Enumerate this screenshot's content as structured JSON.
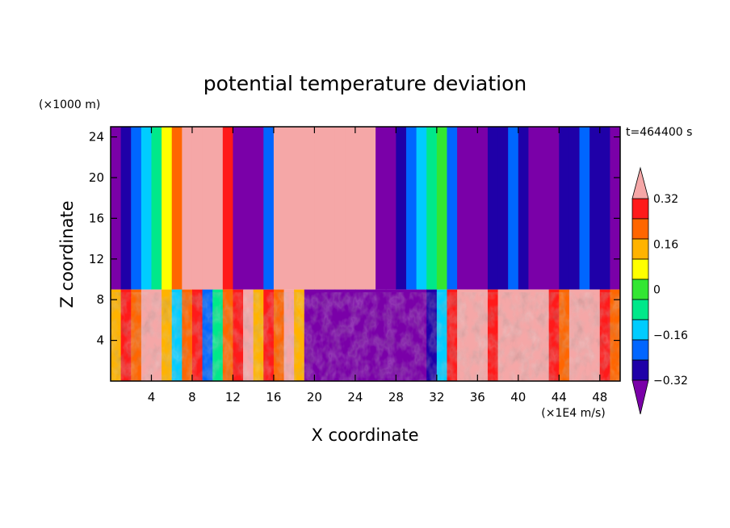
{
  "chart_data": {
    "type": "heatmap",
    "title": "potential temperature deviation",
    "xlabel": "X coordinate",
    "ylabel": "Z coordinate",
    "x_unit": "(×1E4 m/s)",
    "y_unit": "(×1000 m)",
    "time_label": "t=464400 s",
    "xlim": [
      0,
      50
    ],
    "ylim": [
      0,
      25
    ],
    "x_ticks": [
      4,
      8,
      12,
      16,
      20,
      24,
      28,
      32,
      36,
      40,
      44,
      48
    ],
    "y_ticks": [
      4,
      8,
      12,
      16,
      20,
      24
    ],
    "grid": false,
    "legend": "right",
    "colorbar": {
      "levels": [
        -0.4,
        -0.32,
        -0.24,
        -0.16,
        -0.08,
        0,
        0.08,
        0.16,
        0.24,
        0.32,
        0.4
      ],
      "tick_labels": [
        "0.32",
        "0.16",
        "0",
        "−0.16",
        "−0.32"
      ],
      "tick_values": [
        0.32,
        0.16,
        0,
        -0.16,
        -0.32
      ],
      "colors": [
        "#7a00a8",
        "#1f00a8",
        "#0066ff",
        "#00ccff",
        "#00e88a",
        "#33e633",
        "#ffff00",
        "#ffb300",
        "#ff6600",
        "#ff1a1a",
        "#f5a7a7"
      ]
    },
    "upper_layer": {
      "z_range": [
        9,
        25
      ],
      "values": [
        -0.45,
        -0.4,
        -0.32,
        -0.2,
        -0.1,
        0.05,
        0.2,
        0.45,
        0.45,
        0.45,
        0.45,
        0.3,
        -0.45,
        -0.45,
        -0.45,
        -0.3,
        0.45,
        0.45,
        0.45,
        0.45,
        0.45,
        0.45,
        0.45,
        0.45,
        0.45,
        0.45,
        -0.45,
        -0.45,
        -0.4,
        -0.3,
        -0.2,
        -0.1,
        -0.05,
        -0.3,
        -0.45,
        -0.45,
        -0.45,
        -0.4,
        -0.35,
        -0.3,
        -0.35,
        -0.45,
        -0.45,
        -0.45,
        -0.4,
        -0.35,
        -0.3,
        -0.35,
        -0.4,
        -0.45
      ]
    },
    "lower_layer": {
      "z_range": [
        0,
        9
      ],
      "values": [
        0.1,
        0.3,
        0.2,
        0.4,
        0.45,
        0.1,
        -0.2,
        0.2,
        0.3,
        -0.3,
        -0.1,
        0.2,
        0.3,
        0.45,
        0.1,
        0.3,
        0.2,
        0.45,
        0.1,
        -0.45,
        -0.45,
        -0.45,
        -0.45,
        -0.45,
        -0.45,
        -0.45,
        -0.45,
        -0.45,
        -0.45,
        -0.45,
        -0.45,
        -0.4,
        -0.2,
        0.3,
        0.45,
        0.4,
        0.45,
        0.3,
        0.45,
        0.45,
        0.45,
        0.35,
        0.45,
        0.3,
        0.2,
        0.45,
        0.45,
        0.45,
        0.3,
        0.2
      ]
    }
  }
}
